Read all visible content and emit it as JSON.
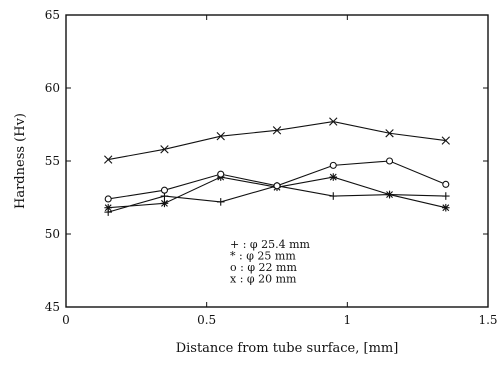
{
  "chart_data": {
    "type": "line",
    "title": "",
    "xlabel": "Distance from tube surface, [mm]",
    "ylabel": "Hardness (Hv)",
    "xlim": [
      0,
      1.5
    ],
    "ylim": [
      45,
      65
    ],
    "xticks": [
      0,
      0.5,
      1,
      1.5
    ],
    "xtick_labels": [
      "0",
      "0.5",
      "1",
      "1.5"
    ],
    "yticks": [
      45,
      50,
      55,
      60,
      65
    ],
    "ytick_labels": [
      "45",
      "50",
      "55",
      "60",
      "65"
    ],
    "grid": false,
    "legend_position": "bottom-center",
    "series": [
      {
        "name": "+ : φ 25.4 mm",
        "marker": "plus",
        "x": [
          0.15,
          0.35,
          0.55,
          0.75,
          0.95,
          1.15,
          1.35
        ],
        "y": [
          51.5,
          52.6,
          52.2,
          53.3,
          52.6,
          52.7,
          52.6
        ]
      },
      {
        "name": "* : φ 25 mm",
        "marker": "asterisk",
        "x": [
          0.15,
          0.35,
          0.55,
          0.75,
          0.95,
          1.15,
          1.35
        ],
        "y": [
          51.8,
          52.1,
          53.9,
          53.2,
          53.9,
          52.7,
          51.8
        ]
      },
      {
        "name": "o : φ 22 mm",
        "marker": "circle",
        "x": [
          0.15,
          0.35,
          0.55,
          0.75,
          0.95,
          1.15,
          1.35
        ],
        "y": [
          52.4,
          53.0,
          54.1,
          53.3,
          54.7,
          55.0,
          53.4
        ]
      },
      {
        "name": "x : φ 20 mm",
        "marker": "cross",
        "x": [
          0.15,
          0.35,
          0.55,
          0.75,
          0.95,
          1.15,
          1.35
        ],
        "y": [
          55.1,
          55.8,
          56.7,
          57.1,
          57.7,
          56.9,
          56.4
        ]
      }
    ]
  }
}
